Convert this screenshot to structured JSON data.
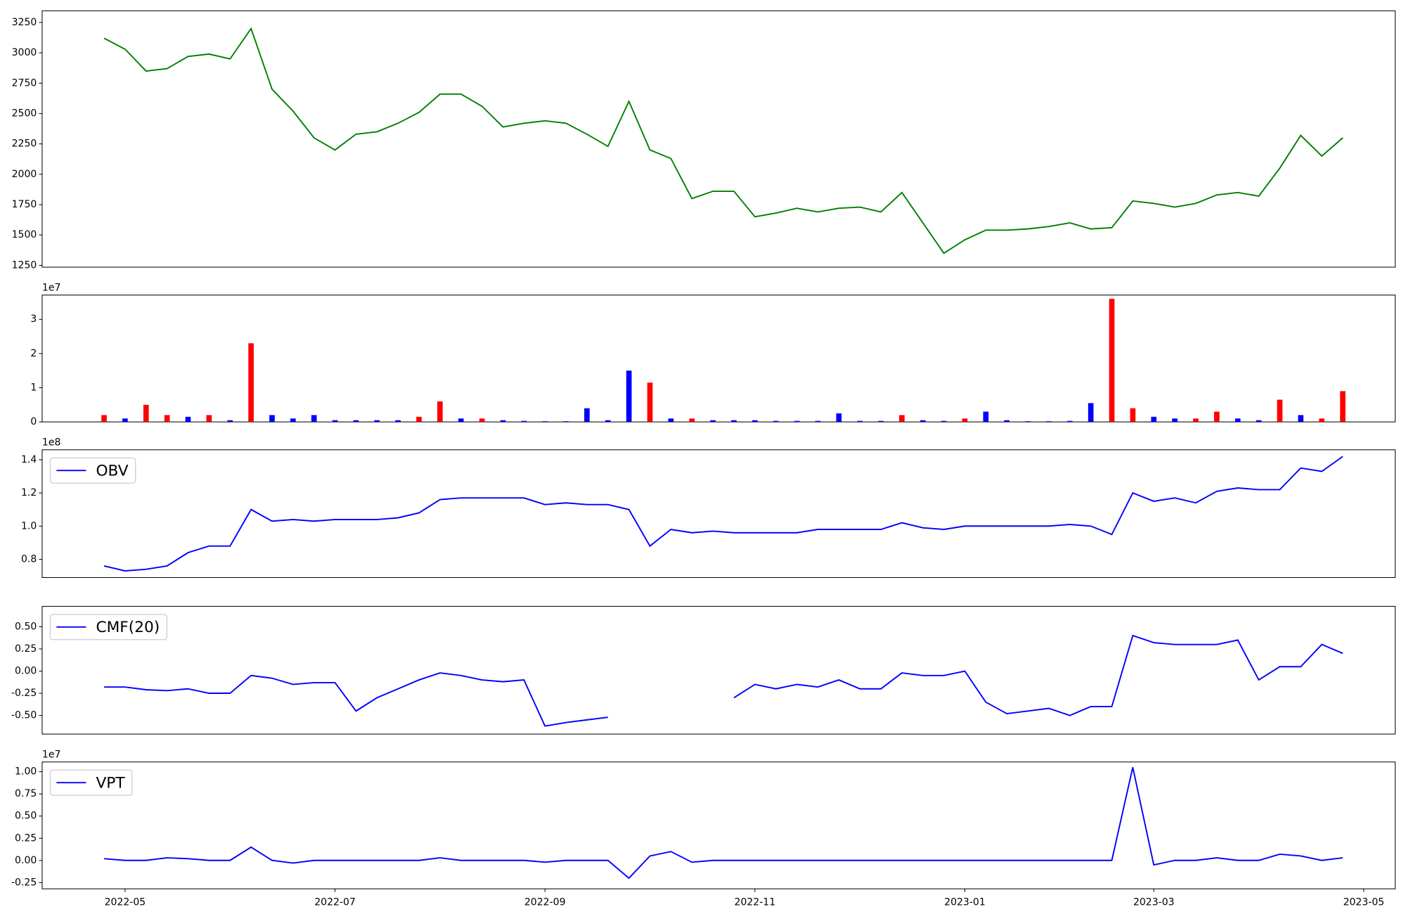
{
  "chart_data": [
    {
      "type": "line",
      "color": "#008000",
      "values": [
        3120,
        3030,
        2850,
        2870,
        2970,
        2990,
        2950,
        3200,
        2700,
        2520,
        2300,
        2200,
        2330,
        2350,
        2420,
        2510,
        2660,
        2660,
        2560,
        2390,
        2420,
        2440,
        2420,
        2330,
        2230,
        2600,
        2200,
        2130,
        1800,
        1860,
        1860,
        1650,
        1680,
        1720,
        1690,
        1720,
        1730,
        1690,
        1850,
        1600,
        1350,
        1460,
        1540,
        1540,
        1550,
        1570,
        1600,
        1550,
        1560,
        1780,
        1760,
        1730,
        1760,
        1830,
        1850,
        1820,
        2050,
        2320,
        2150,
        2300,
        null
      ],
      "ylim": [
        1235,
        3346
      ],
      "yticks": [
        1250,
        1500,
        1750,
        2000,
        2250,
        2500,
        2750,
        3000,
        3250
      ]
    },
    {
      "type": "bar",
      "offset_label": "1e7",
      "values": [
        0.2,
        0.1,
        0.5,
        0.2,
        0.15,
        0.2,
        0.05,
        2.3,
        0.2,
        0.1,
        0.2,
        0.05,
        0.05,
        0.05,
        0.05,
        0.15,
        0.6,
        0.1,
        0.1,
        0.05,
        0.03,
        0.02,
        0.02,
        0.4,
        0.05,
        1.5,
        1.15,
        0.1,
        0.1,
        0.05,
        0.05,
        0.05,
        0.03,
        0.03,
        0.03,
        0.25,
        0.03,
        0.03,
        0.2,
        0.05,
        0.03,
        0.1,
        0.3,
        0.05,
        0.02,
        0.02,
        0.03,
        0.55,
        3.6,
        0.4,
        0.15,
        0.1,
        0.1,
        0.3,
        0.1,
        0.05,
        0.65,
        0.2,
        0.1,
        0.9,
        null
      ],
      "colors": [
        "#ff0000",
        "#0000ff",
        "#ff0000",
        "#ff0000",
        "#0000ff",
        "#ff0000",
        "#0000ff",
        "#ff0000",
        "#0000ff",
        "#0000ff",
        "#0000ff",
        "#0000ff",
        "#0000ff",
        "#0000ff",
        "#0000ff",
        "#ff0000",
        "#ff0000",
        "#0000ff",
        "#ff0000",
        "#0000ff",
        "#0000ff",
        "#0000ff",
        "#0000ff",
        "#0000ff",
        "#0000ff",
        "#0000ff",
        "#ff0000",
        "#0000ff",
        "#ff0000",
        "#0000ff",
        "#0000ff",
        "#0000ff",
        "#0000ff",
        "#0000ff",
        "#0000ff",
        "#0000ff",
        "#0000ff",
        "#0000ff",
        "#ff0000",
        "#0000ff",
        "#0000ff",
        "#ff0000",
        "#0000ff",
        "#0000ff",
        "#0000ff",
        "#0000ff",
        "#0000ff",
        "#0000ff",
        "#ff0000",
        "#ff0000",
        "#0000ff",
        "#0000ff",
        "#ff0000",
        "#ff0000",
        "#0000ff",
        "#0000ff",
        "#ff0000",
        "#0000ff",
        "#ff0000",
        "#ff0000",
        null
      ],
      "ylim": [
        0,
        3.71
      ],
      "yticks": [
        0,
        1,
        2,
        3
      ]
    },
    {
      "type": "line",
      "offset_label": "1e8",
      "legend": "upper left",
      "series": [
        {
          "name": "OBV",
          "color": "#0000ff",
          "values": [
            0.76,
            0.73,
            0.74,
            0.76,
            0.84,
            0.88,
            0.88,
            1.1,
            1.03,
            1.04,
            1.03,
            1.04,
            1.04,
            1.04,
            1.05,
            1.08,
            1.16,
            1.17,
            1.17,
            1.17,
            1.17,
            1.13,
            1.14,
            1.13,
            1.13,
            1.1,
            0.88,
            0.98,
            0.96,
            0.97,
            0.96,
            0.96,
            0.96,
            0.96,
            0.98,
            0.98,
            0.98,
            0.98,
            1.02,
            0.99,
            0.98,
            1.0,
            1.0,
            1.0,
            1.0,
            1.0,
            1.01,
            1.0,
            0.95,
            1.2,
            1.15,
            1.17,
            1.14,
            1.21,
            1.23,
            1.22,
            1.22,
            1.35,
            1.33,
            1.42,
            null
          ]
        }
      ],
      "ylim": [
        0.69,
        1.46
      ],
      "yticks": [
        0.8,
        {
          "value": 1.0,
          "label": "1.0"
        },
        1.2,
        1.4
      ]
    },
    {
      "type": "line",
      "legend": "upper left",
      "series": [
        {
          "name": "CMF(20)",
          "color": "#0000ff",
          "values": [
            -0.18,
            -0.18,
            -0.21,
            -0.22,
            -0.2,
            -0.25,
            -0.25,
            -0.05,
            -0.08,
            -0.15,
            -0.13,
            -0.13,
            -0.45,
            -0.3,
            -0.2,
            -0.1,
            -0.02,
            -0.05,
            -0.1,
            -0.12,
            -0.1,
            -0.62,
            -0.58,
            -0.55,
            -0.52,
            null,
            null,
            null,
            null,
            null,
            -0.3,
            -0.15,
            -0.2,
            -0.15,
            -0.18,
            -0.1,
            -0.2,
            -0.2,
            -0.02,
            -0.05,
            -0.05,
            0.0,
            -0.35,
            -0.48,
            -0.45,
            -0.42,
            -0.5,
            -0.4,
            -0.4,
            0.4,
            0.32,
            0.3,
            0.3,
            0.3,
            0.35,
            -0.1,
            0.05,
            0.05,
            0.3,
            0.2,
            null
          ]
        }
      ],
      "ylim": [
        -0.71,
        0.73
      ],
      "yticks": [
        {
          "value": -0.5,
          "label": "-0.50"
        },
        {
          "value": -0.25,
          "label": "-0.25"
        },
        {
          "value": 0,
          "label": "0.00"
        },
        {
          "value": 0.25,
          "label": "0.25"
        },
        {
          "value": 0.5,
          "label": "0.50"
        }
      ]
    },
    {
      "type": "line",
      "offset_label": "1e7",
      "legend": "upper left",
      "categories": [
        null,
        "2022-05",
        null,
        null,
        null,
        null,
        null,
        null,
        null,
        null,
        null,
        "2022-07",
        null,
        null,
        null,
        null,
        null,
        null,
        null,
        null,
        null,
        "2022-09",
        null,
        null,
        null,
        null,
        null,
        null,
        null,
        null,
        null,
        "2022-11",
        null,
        null,
        null,
        null,
        null,
        null,
        null,
        null,
        null,
        "2023-01",
        null,
        null,
        null,
        null,
        null,
        null,
        null,
        null,
        "2023-03",
        null,
        null,
        null,
        null,
        null,
        null,
        null,
        null,
        null,
        "2023-05"
      ],
      "series": [
        {
          "name": "VPT",
          "color": "#0000ff",
          "values": [
            0.02,
            0,
            0,
            0.03,
            0.02,
            0,
            0,
            0.15,
            0,
            -0.03,
            0,
            0,
            0,
            0,
            0,
            0,
            0.03,
            0,
            0,
            0,
            0,
            -0.02,
            0,
            0,
            0,
            -0.2,
            0.05,
            0.1,
            -0.02,
            0,
            0,
            0,
            0,
            0,
            0,
            0,
            0,
            0,
            0,
            0,
            0,
            0,
            0,
            0,
            0,
            0,
            0,
            0,
            0,
            1.05,
            -0.05,
            0,
            0,
            0.03,
            0,
            0,
            0.07,
            0.05,
            0,
            0.03,
            null
          ]
        }
      ],
      "ylim": [
        -0.32,
        1.11
      ],
      "yticks": [
        {
          "value": -0.25,
          "label": "-0.25"
        },
        {
          "value": 0,
          "label": "0.00"
        },
        {
          "value": 0.25,
          "label": "0.25"
        },
        {
          "value": 0.5,
          "label": "0.50"
        },
        {
          "value": 0.75,
          "label": "0.75"
        },
        {
          "value": 1.0,
          "label": "1.00"
        }
      ]
    }
  ]
}
